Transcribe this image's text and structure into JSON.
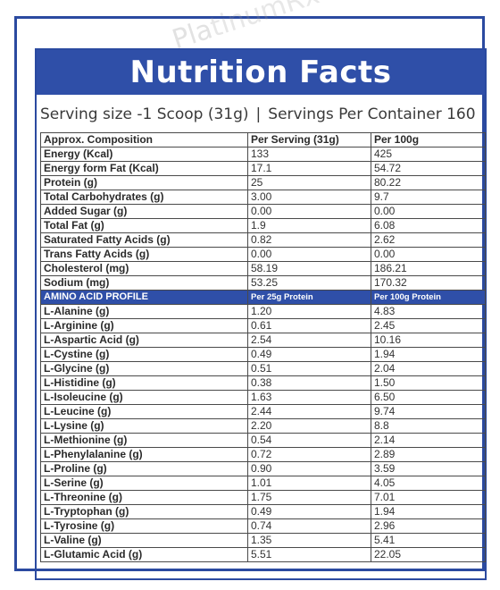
{
  "panel": {
    "title": "Nutrition Facts",
    "serving_size": "Serving size -1 Scoop (31g)",
    "separator": "|",
    "servings_per_container": "Servings Per Container 160"
  },
  "composition": {
    "headers": [
      "Approx. Composition",
      "Per Serving  (31g)",
      "Per 100g"
    ],
    "rows": [
      [
        "Energy (Kcal)",
        "133",
        "425"
      ],
      [
        "Energy form Fat (Kcal)",
        "17.1",
        "54.72"
      ],
      [
        "Protein (g)",
        "25",
        "80.22"
      ],
      [
        "Total Carbohydrates (g)",
        "3.00",
        "9.7"
      ],
      [
        "Added Sugar (g)",
        "0.00",
        "0.00"
      ],
      [
        "Total Fat (g)",
        "1.9",
        "6.08"
      ],
      [
        "Saturated Fatty Acids (g)",
        "0.82",
        "2.62"
      ],
      [
        "Trans Fatty Acids (g)",
        "0.00",
        "0.00"
      ],
      [
        "Cholesterol (mg)",
        "58.19",
        "186.21"
      ],
      [
        "Sodium (mg)",
        "53.25",
        "170.32"
      ]
    ]
  },
  "amino": {
    "headers": [
      "AMINO ACID PROFILE",
      "Per 25g Protein",
      "Per 100g Protein"
    ],
    "rows": [
      [
        "L-Alanine (g)",
        "1.20",
        "4.83"
      ],
      [
        "L-Arginine (g)",
        "0.61",
        "2.45"
      ],
      [
        "L-Aspartic Acid (g)",
        "2.54",
        "10.16"
      ],
      [
        "L-Cystine (g)",
        "0.49",
        "1.94"
      ],
      [
        "L-Glycine (g)",
        "0.51",
        "2.04"
      ],
      [
        "L-Histidine (g)",
        "0.38",
        "1.50"
      ],
      [
        "L-Isoleucine (g)",
        "1.63",
        "6.50"
      ],
      [
        "L-Leucine (g)",
        "2.44",
        "9.74"
      ],
      [
        "L-Lysine (g)",
        "2.20",
        "8.8"
      ],
      [
        "L-Methionine (g)",
        "0.54",
        "2.14"
      ],
      [
        "L-Phenylalanine (g)",
        "0.72",
        "2.89"
      ],
      [
        "L-Proline (g)",
        "0.90",
        "3.59"
      ],
      [
        "L-Serine (g)",
        "1.01",
        "4.05"
      ],
      [
        "L-Threonine (g)",
        "1.75",
        "7.01"
      ],
      [
        "L-Tryptophan (g)",
        "0.49",
        "1.94"
      ],
      [
        "L-Tyrosine (g)",
        "0.74",
        "2.96"
      ],
      [
        "L-Valine (g)",
        "1.35",
        "5.41"
      ],
      [
        "L-Glutamic Acid (g)",
        "5.51",
        "22.05"
      ]
    ]
  },
  "watermark": "PlatinumRx",
  "colors": {
    "brand_blue": "#2f4fa8",
    "grid": "#4a4a4a",
    "text": "#2a2a2a"
  }
}
